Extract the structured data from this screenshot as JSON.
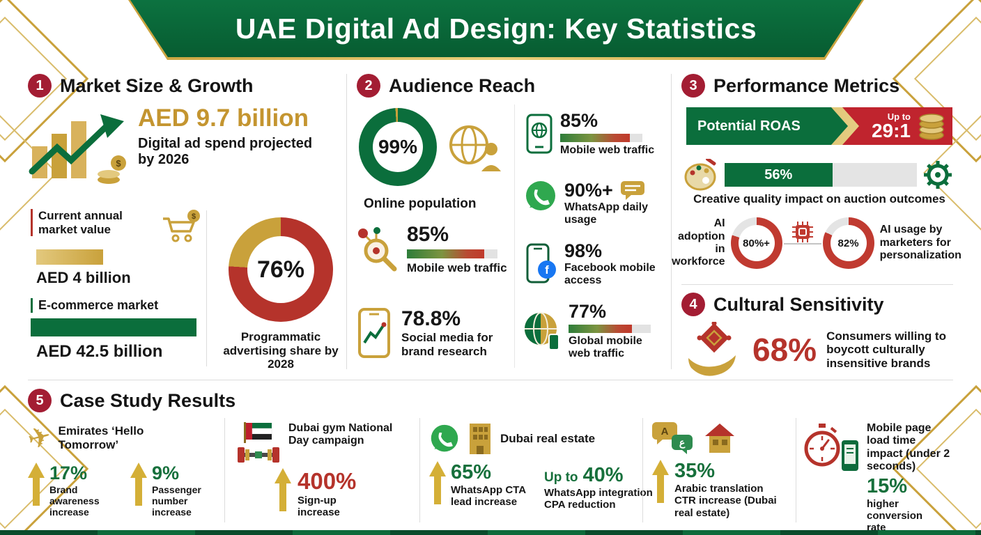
{
  "header": {
    "title": "UAE Digital Ad Design: Key Statistics"
  },
  "icons": {
    "dollar": "$",
    "facebook_f": "f",
    "translate_latin": "A",
    "translate_arabic": "ع"
  },
  "colors": {
    "green": "#0B6E3C",
    "gold": "#C9A13B",
    "red": "#B5332B",
    "badge_red": "#A31D33",
    "light_gray": "#E4E4E4"
  },
  "sections": {
    "market": {
      "badge": "1",
      "title": "Market Size & Growth",
      "projection_value": "AED 9.7 billion",
      "projection_label": "Digital ad spend projected by 2026",
      "current_label": "Current annual market value",
      "current_value": "AED 4 billion",
      "ecommerce_label": "E-commerce market",
      "ecommerce_value": "AED 42.5 billion",
      "donut": {
        "pct": 76,
        "color": "#B5332B",
        "rest": "#C9A13B",
        "value_label": "76%"
      },
      "donut_caption": "Programmatic advertising share by 2028"
    },
    "audience": {
      "badge": "2",
      "title": "Audience Reach",
      "online": {
        "pct": 99,
        "color": "#0B6E3C",
        "rest": "#C9A13B",
        "value_label": "99%"
      },
      "online_caption": "Online population",
      "left_stats": [
        {
          "value": "85%",
          "label": "Mobile web traffic",
          "bar_pct": 85
        },
        {
          "value": "78.8%",
          "label": "Social media for brand research"
        }
      ],
      "right_stats": [
        {
          "value": "85%",
          "label": "Mobile web traffic",
          "bar_pct": 85
        },
        {
          "value": "90%+",
          "label": "WhatsApp daily usage"
        },
        {
          "value": "98%",
          "label": "Facebook mobile access"
        },
        {
          "value": "77%",
          "label": "Global mobile web traffic",
          "bar_pct": 77
        }
      ]
    },
    "performance": {
      "badge": "3",
      "title": "Performance Metrics",
      "roas_label": "Potential ROAS",
      "roas_prefix": "Up to",
      "roas_value": "29:1",
      "creative_bar": {
        "pct": 56,
        "value_label": "56%"
      },
      "creative_caption": "Creative quality impact on auction outcomes",
      "ai_left_label": "AI adoption in workforce",
      "ai_left": {
        "pct": 80,
        "color": "#C03A30",
        "rest": "#E4E4E4",
        "value_label": "80%+"
      },
      "ai_right": {
        "pct": 82,
        "color": "#C03A30",
        "rest": "#E4E4E4",
        "value_label": "82%"
      },
      "ai_right_label": "AI usage by marketers for personalization"
    },
    "cultural": {
      "badge": "4",
      "title": "Cultural Sensitivity",
      "value": "68%",
      "label": "Consumers willing to boycott culturally insensitive brands"
    },
    "cases": {
      "badge": "5",
      "title": "Case Study Results",
      "emirates": {
        "title": "Emirates ‘Hello Tomorrow’",
        "stats": [
          {
            "value": "17%",
            "label": "Brand awareness increase"
          },
          {
            "value": "9%",
            "label": "Passenger number increase"
          }
        ]
      },
      "gym": {
        "title": "Dubai gym National Day campaign",
        "value": "400%",
        "label": "Sign-up increase"
      },
      "realestate": {
        "title": "Dubai real estate",
        "stat1": {
          "value": "65%",
          "label": "WhatsApp CTA lead increase"
        },
        "stat2": {
          "prefix": "Up to",
          "value": "40%",
          "label": "WhatsApp integration CPA reduction"
        }
      },
      "translation": {
        "value": "35%",
        "label": "Arabic translation CTR increase (Dubai real estate)"
      },
      "pageload": {
        "title": "Mobile page load time impact (under 2 seconds)",
        "value": "15%",
        "label": "higher conversion rate"
      }
    }
  },
  "chart_data": [
    {
      "type": "pie",
      "title": "Programmatic advertising share by 2028",
      "labels": [
        "Programmatic",
        "Other"
      ],
      "values": [
        76,
        24
      ],
      "colors": [
        "#B5332B",
        "#C9A13B"
      ]
    },
    {
      "type": "pie",
      "title": "Online population",
      "labels": [
        "Online",
        "Offline"
      ],
      "values": [
        99,
        1
      ],
      "colors": [
        "#0B6E3C",
        "#C9A13B"
      ]
    },
    {
      "type": "bar",
      "title": "Audience Reach (%)",
      "categories": [
        "Mobile web traffic",
        "Social media for brand research",
        "WhatsApp daily usage",
        "Facebook mobile access",
        "Global mobile web traffic"
      ],
      "values": [
        85,
        78.8,
        90,
        98,
        77
      ],
      "ylim": [
        0,
        100
      ]
    },
    {
      "type": "bar",
      "title": "Creative quality impact on auction outcomes (%)",
      "categories": [
        "Impact"
      ],
      "values": [
        56
      ],
      "ylim": [
        0,
        100
      ]
    },
    {
      "type": "pie",
      "title": "AI adoption in workforce",
      "labels": [
        "Adopted",
        "Not adopted"
      ],
      "values": [
        80,
        20
      ],
      "colors": [
        "#C03A30",
        "#E4E4E4"
      ]
    },
    {
      "type": "pie",
      "title": "AI usage by marketers for personalization",
      "labels": [
        "Using",
        "Not using"
      ],
      "values": [
        82,
        18
      ],
      "colors": [
        "#C03A30",
        "#E4E4E4"
      ]
    },
    {
      "type": "bar",
      "title": "Case Study Results (%)",
      "categories": [
        "Emirates brand awareness increase",
        "Emirates passenger number increase",
        "Dubai gym sign-up increase",
        "WhatsApp CTA lead increase",
        "WhatsApp integration CPA reduction",
        "Arabic translation CTR increase",
        "Mobile load under 2s conversion lift"
      ],
      "values": [
        17,
        9,
        400,
        65,
        40,
        35,
        15
      ]
    },
    {
      "type": "bar",
      "title": "Key market figures",
      "categories": [
        "Digital ad spend projected by 2026 (AED bn)",
        "Current annual market value (AED bn)",
        "E-commerce market (AED bn)",
        "Potential ROAS (x:1)",
        "Consumers willing to boycott (%)"
      ],
      "values": [
        9.7,
        4,
        42.5,
        29,
        68
      ]
    }
  ]
}
